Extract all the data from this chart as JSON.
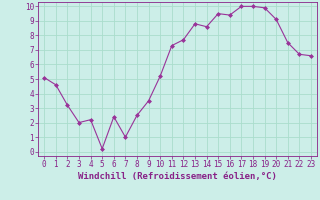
{
  "x": [
    0,
    1,
    2,
    3,
    4,
    5,
    6,
    7,
    8,
    9,
    10,
    11,
    12,
    13,
    14,
    15,
    16,
    17,
    18,
    19,
    20,
    21,
    22,
    23
  ],
  "y": [
    5.1,
    4.6,
    3.2,
    2.0,
    2.2,
    0.2,
    2.4,
    1.0,
    2.5,
    3.5,
    5.2,
    7.3,
    7.7,
    8.8,
    8.6,
    9.5,
    9.4,
    10.0,
    10.0,
    9.9,
    9.1,
    7.5,
    6.7,
    6.6
  ],
  "line_color": "#993399",
  "marker": "D",
  "marker_size": 2.0,
  "bg_color": "#cceee8",
  "grid_color": "#aaddcc",
  "xlabel": "Windchill (Refroidissement éolien,°C)",
  "xlabel_fontsize": 6.5,
  "xlim": [
    -0.5,
    23.5
  ],
  "ylim": [
    -0.3,
    10.3
  ],
  "yticks": [
    0,
    1,
    2,
    3,
    4,
    5,
    6,
    7,
    8,
    9,
    10
  ],
  "xticks": [
    0,
    1,
    2,
    3,
    4,
    5,
    6,
    7,
    8,
    9,
    10,
    11,
    12,
    13,
    14,
    15,
    16,
    17,
    18,
    19,
    20,
    21,
    22,
    23
  ],
  "tick_fontsize": 5.5,
  "spine_color": "#882288",
  "label_color": "#882288"
}
